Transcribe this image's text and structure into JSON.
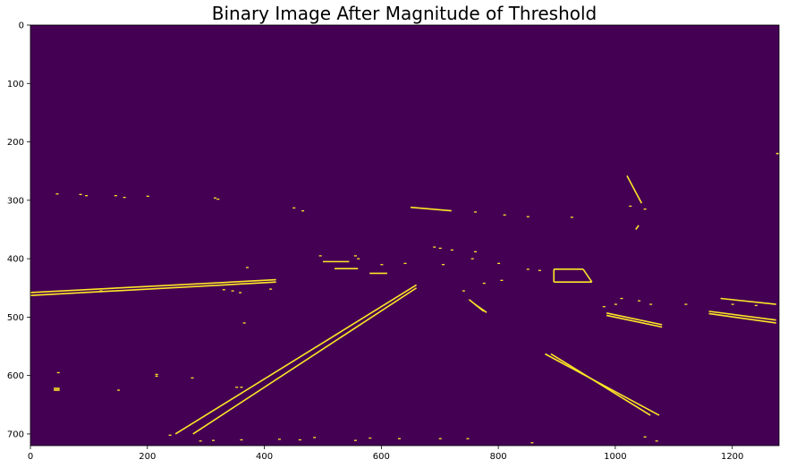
{
  "chart_data": {
    "type": "image",
    "title": "Binary Image After Magnitude of Threshold",
    "xlabel": "",
    "ylabel": "",
    "xlim": [
      0,
      1280
    ],
    "ylim": [
      720,
      0
    ],
    "grid": false,
    "xticks": [
      0,
      200,
      400,
      600,
      800,
      1000,
      1200
    ],
    "yticks": [
      0,
      100,
      200,
      300,
      400,
      500,
      600,
      700
    ],
    "xtick_labels": [
      "0",
      "200",
      "400",
      "600",
      "800",
      "1000",
      "1200"
    ],
    "ytick_labels": [
      "0",
      "100",
      "200",
      "300",
      "400",
      "500",
      "600",
      "700"
    ],
    "colors": {
      "background": "#440154",
      "foreground": "#fde725"
    },
    "lines": [
      {
        "name": "left-lane-line-outer",
        "points": [
          [
            248,
            700
          ],
          [
            660,
            445
          ]
        ]
      },
      {
        "name": "left-lane-line-inner",
        "points": [
          [
            278,
            700
          ],
          [
            660,
            450
          ]
        ]
      },
      {
        "name": "right-lane-line-outer",
        "points": [
          [
            880,
            563
          ],
          [
            1075,
            668
          ]
        ]
      },
      {
        "name": "right-lane-line-inner",
        "points": [
          [
            890,
            563
          ],
          [
            1060,
            668
          ]
        ]
      },
      {
        "name": "left-horizon-stripe-top",
        "points": [
          [
            0,
            458
          ],
          [
            420,
            436
          ]
        ]
      },
      {
        "name": "left-horizon-stripe-bottom",
        "points": [
          [
            0,
            463
          ],
          [
            420,
            440
          ]
        ]
      },
      {
        "name": "right-stripe-a-top",
        "points": [
          [
            985,
            493
          ],
          [
            1080,
            513
          ]
        ]
      },
      {
        "name": "right-stripe-a-bottom",
        "points": [
          [
            985,
            497
          ],
          [
            1080,
            517
          ]
        ]
      },
      {
        "name": "right-stripe-b-top",
        "points": [
          [
            1160,
            490
          ],
          [
            1275,
            505
          ]
        ]
      },
      {
        "name": "right-stripe-b-bottom",
        "points": [
          [
            1160,
            494
          ],
          [
            1275,
            510
          ]
        ]
      },
      {
        "name": "right-stripe-c",
        "points": [
          [
            1180,
            468
          ],
          [
            1275,
            478
          ]
        ]
      },
      {
        "name": "car-outline-top",
        "points": [
          [
            895,
            418
          ],
          [
            945,
            418
          ]
        ]
      },
      {
        "name": "car-outline-bottom",
        "points": [
          [
            895,
            440
          ],
          [
            960,
            440
          ]
        ]
      },
      {
        "name": "car-outline-left",
        "points": [
          [
            895,
            418
          ],
          [
            895,
            440
          ]
        ]
      },
      {
        "name": "car-outline-right",
        "points": [
          [
            945,
            418
          ],
          [
            960,
            440
          ]
        ]
      },
      {
        "name": "road-edge-a",
        "points": [
          [
            1035,
            350
          ],
          [
            1040,
            343
          ]
        ]
      },
      {
        "name": "vehicle-dots-line",
        "points": [
          [
            520,
            417
          ],
          [
            560,
            417
          ]
        ]
      },
      {
        "name": "mid-horizon-stripe",
        "points": [
          [
            650,
            312
          ],
          [
            720,
            318
          ]
        ]
      },
      {
        "name": "mid-stripe-2",
        "points": [
          [
            500,
            405
          ],
          [
            545,
            405
          ]
        ]
      },
      {
        "name": "mid-stripe-3",
        "points": [
          [
            580,
            425
          ],
          [
            610,
            425
          ]
        ]
      },
      {
        "name": "center-car-left",
        "points": [
          [
            750,
            470
          ],
          [
            775,
            490
          ]
        ]
      },
      {
        "name": "center-car-left-2",
        "points": [
          [
            760,
            478
          ],
          [
            780,
            492
          ]
        ]
      },
      {
        "name": "far-right-edge",
        "points": [
          [
            1275,
            220
          ],
          [
            1280,
            220
          ]
        ]
      },
      {
        "name": "small-left-mark",
        "points": [
          [
            40,
            622
          ],
          [
            50,
            622
          ]
        ]
      },
      {
        "name": "small-left-mark-2",
        "points": [
          [
            40,
            625
          ],
          [
            50,
            625
          ]
        ]
      },
      {
        "name": "upper-right-curve",
        "points": [
          [
            1020,
            258
          ],
          [
            1045,
            305
          ]
        ]
      }
    ],
    "dots": [
      [
        45,
        289
      ],
      [
        85,
        290
      ],
      [
        95,
        292
      ],
      [
        145,
        292
      ],
      [
        160,
        295
      ],
      [
        200,
        293
      ],
      [
        315,
        296
      ],
      [
        320,
        298
      ],
      [
        450,
        313
      ],
      [
        465,
        318
      ],
      [
        760,
        320
      ],
      [
        810,
        325
      ],
      [
        850,
        328
      ],
      [
        925,
        329
      ],
      [
        1025,
        310
      ],
      [
        1050,
        315
      ],
      [
        760,
        388
      ],
      [
        690,
        380
      ],
      [
        700,
        382
      ],
      [
        720,
        385
      ],
      [
        495,
        395
      ],
      [
        555,
        395
      ],
      [
        560,
        400
      ],
      [
        600,
        410
      ],
      [
        640,
        408
      ],
      [
        705,
        410
      ],
      [
        755,
        400
      ],
      [
        800,
        408
      ],
      [
        850,
        418
      ],
      [
        870,
        420
      ],
      [
        775,
        442
      ],
      [
        805,
        437
      ],
      [
        740,
        455
      ],
      [
        1010,
        468
      ],
      [
        1040,
        472
      ],
      [
        1060,
        478
      ],
      [
        1200,
        478
      ],
      [
        1120,
        478
      ],
      [
        1000,
        478
      ],
      [
        980,
        482
      ],
      [
        1240,
        480
      ],
      [
        410,
        452
      ],
      [
        330,
        453
      ],
      [
        345,
        455
      ],
      [
        358,
        458
      ],
      [
        352,
        620
      ],
      [
        360,
        620
      ],
      [
        276,
        604
      ],
      [
        215,
        598
      ],
      [
        215,
        601
      ],
      [
        238,
        702
      ],
      [
        290,
        712
      ],
      [
        312,
        711
      ],
      [
        360,
        710
      ],
      [
        425,
        709
      ],
      [
        460,
        710
      ],
      [
        485,
        706
      ],
      [
        555,
        711
      ],
      [
        580,
        707
      ],
      [
        630,
        708
      ],
      [
        700,
        708
      ],
      [
        747,
        708
      ],
      [
        857,
        715
      ],
      [
        1050,
        705
      ],
      [
        1070,
        712
      ],
      [
        365,
        510
      ],
      [
        150,
        625
      ],
      [
        47,
        595
      ],
      [
        120,
        455
      ],
      [
        370,
        415
      ]
    ]
  }
}
